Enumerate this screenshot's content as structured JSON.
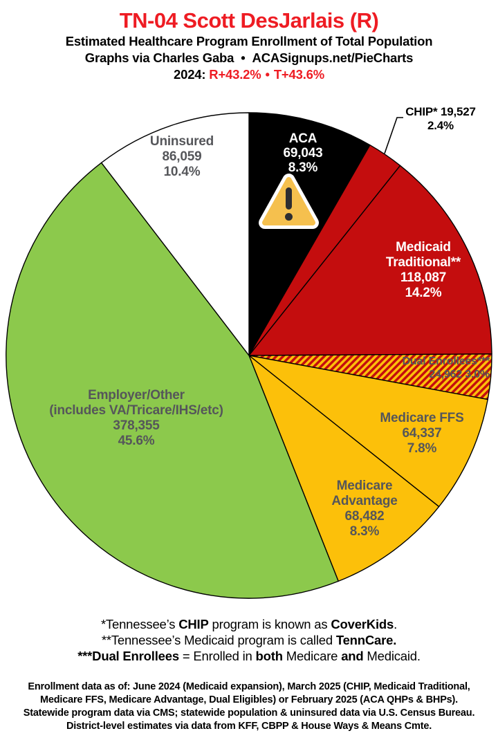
{
  "header": {
    "title": "TN-04 Scott DesJarlais (R)",
    "subtitle": "Estimated Healthcare Program Enrollment of Total Population",
    "credit": {
      "left": "Graphs via Charles Gaba",
      "bullet": "•",
      "right": "ACASignups.net/PieCharts"
    },
    "partisan": {
      "year": "2024:",
      "r_lean": "R+43.2%",
      "bullet": "•",
      "t_lean": "T+43.6%"
    }
  },
  "palette": {
    "title_red": "#ee1c23",
    "label_gray": "#55565a",
    "pie_red": "#c40d0e",
    "pie_yellow": "#fcc00a",
    "pie_green": "#8cc94c"
  },
  "chart_data": {
    "type": "pie",
    "title": "Estimated Healthcare Program Enrollment of Total Population",
    "district": "TN-04",
    "direction": "clockwise",
    "start_angle_deg": 0,
    "slice_border": "#000000",
    "hatch_colors": [
      "#fcc00a",
      "#c40d0e"
    ],
    "slices": [
      {
        "id": "aca",
        "label": "ACA",
        "label_lines": [
          "ACA"
        ],
        "value": 69043,
        "value_text": "69,043",
        "pct": 8.3,
        "pct_text": "8.3%",
        "color": "#000000"
      },
      {
        "id": "chip",
        "label": "CHIP*",
        "label_lines": [
          "CHIP*"
        ],
        "value": 19527,
        "value_text": "19,527",
        "pct": 2.4,
        "pct_text": "2.4%",
        "color": "#c40d0e"
      },
      {
        "id": "medicaid-traditional",
        "label": "Medicaid Traditional**",
        "label_lines": [
          "Medicaid",
          "Traditional**"
        ],
        "value": 118087,
        "value_text": "118,087",
        "pct": 14.2,
        "pct_text": "14.2%",
        "color": "#c40d0e"
      },
      {
        "id": "dual-enrollees",
        "label": "Dual Enrollees***",
        "label_lines": [
          "Dual Enrollees***"
        ],
        "value": 24962,
        "value_text": "24,962",
        "pct": 3.0,
        "pct_text": "3.0%",
        "color": "#c40d0e",
        "hatch": true
      },
      {
        "id": "medicare-ffs",
        "label": "Medicare FFS",
        "label_lines": [
          "Medicare FFS"
        ],
        "value": 64337,
        "value_text": "64,337",
        "pct": 7.8,
        "pct_text": "7.8%",
        "color": "#fcc00a"
      },
      {
        "id": "medicare-advantage",
        "label": "Medicare Advantage",
        "label_lines": [
          "Medicare",
          "Advantage"
        ],
        "value": 68482,
        "value_text": "68,482",
        "pct": 8.3,
        "pct_text": "8.3%",
        "color": "#fcc00a"
      },
      {
        "id": "employer-other",
        "label": "Employer/Other (includes VA/Tricare/IHS/etc)",
        "label_lines": [
          "Employer/Other",
          "(includes VA/Tricare/IHS/etc)"
        ],
        "value": 378355,
        "value_text": "378,355",
        "pct": 45.6,
        "pct_text": "45.6%",
        "color": "#8cc94c"
      },
      {
        "id": "uninsured",
        "label": "Uninsured",
        "label_lines": [
          "Uninsured"
        ],
        "value": 86059,
        "value_text": "86,059",
        "pct": 10.4,
        "pct_text": "10.4%",
        "color": "#ffffff"
      }
    ]
  },
  "warning_icon": {
    "name": "warning-triangle",
    "on_slice": "aca"
  },
  "footnotes": {
    "line1": {
      "pre": "*Tennessee’s ",
      "b1": "CHIP",
      "mid": " program is known as ",
      "b2": "CoverKids",
      "post": "."
    },
    "line2": {
      "pre": "**Tennessee’s Medicaid program is called ",
      "b1": "TennCare."
    },
    "line3": {
      "b1": "***Dual Enrollees",
      "mid1": " = Enrolled in ",
      "b2": "both",
      "mid2": " Medicare ",
      "b3": "and",
      "post": " Medicaid."
    }
  },
  "sources": {
    "lines": [
      "Enrollment data as of: June 2024 (Medicaid expansion), March 2025 (CHIP, Medicaid Traditional,",
      "Medicare FFS, Medicare Advantage, Dual Eligibles) or February 2025 (ACA QHPs & BHPs).",
      "Statewide program data via CMS; statewide population & uninsured data via U.S. Census Bureau.",
      "District-level estimates via data from KFF, CBPP & House Ways & Means Cmte."
    ]
  }
}
